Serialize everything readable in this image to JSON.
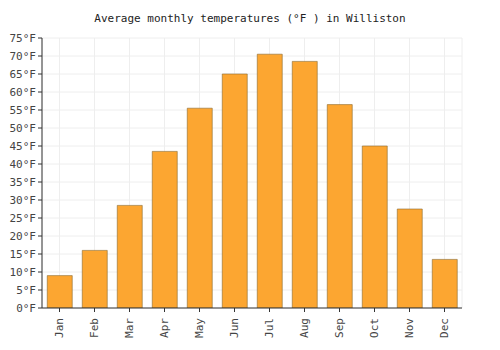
{
  "chart_data": {
    "type": "bar",
    "title": "Average monthly temperatures (°F ) in Williston",
    "categories": [
      "Jan",
      "Feb",
      "Mar",
      "Apr",
      "May",
      "Jun",
      "Jul",
      "Aug",
      "Sep",
      "Oct",
      "Nov",
      "Dec"
    ],
    "values": [
      9,
      16,
      28.5,
      43.5,
      55.5,
      65,
      70.5,
      68.5,
      56.5,
      45,
      27.5,
      13.5
    ],
    "color": "#fca631",
    "ylim": [
      0,
      75
    ],
    "yticks": [
      {
        "value": 0,
        "label": "0°F"
      },
      {
        "value": 5,
        "label": "5°F"
      },
      {
        "value": 10,
        "label": "10°F"
      },
      {
        "value": 15,
        "label": "15°F"
      },
      {
        "value": 20,
        "label": "20°F"
      },
      {
        "value": 25,
        "label": "25°F"
      },
      {
        "value": 30,
        "label": "30°F"
      },
      {
        "value": 35,
        "label": "35°F"
      },
      {
        "value": 40,
        "label": "40°F"
      },
      {
        "value": 45,
        "label": "45°F"
      },
      {
        "value": 50,
        "label": "50°F"
      },
      {
        "value": 55,
        "label": "55°F"
      },
      {
        "value": 60,
        "label": "60°F"
      },
      {
        "value": 65,
        "label": "65°F"
      },
      {
        "value": 70,
        "label": "70°F"
      },
      {
        "value": 75,
        "label": "75°F"
      }
    ],
    "grid": true
  }
}
